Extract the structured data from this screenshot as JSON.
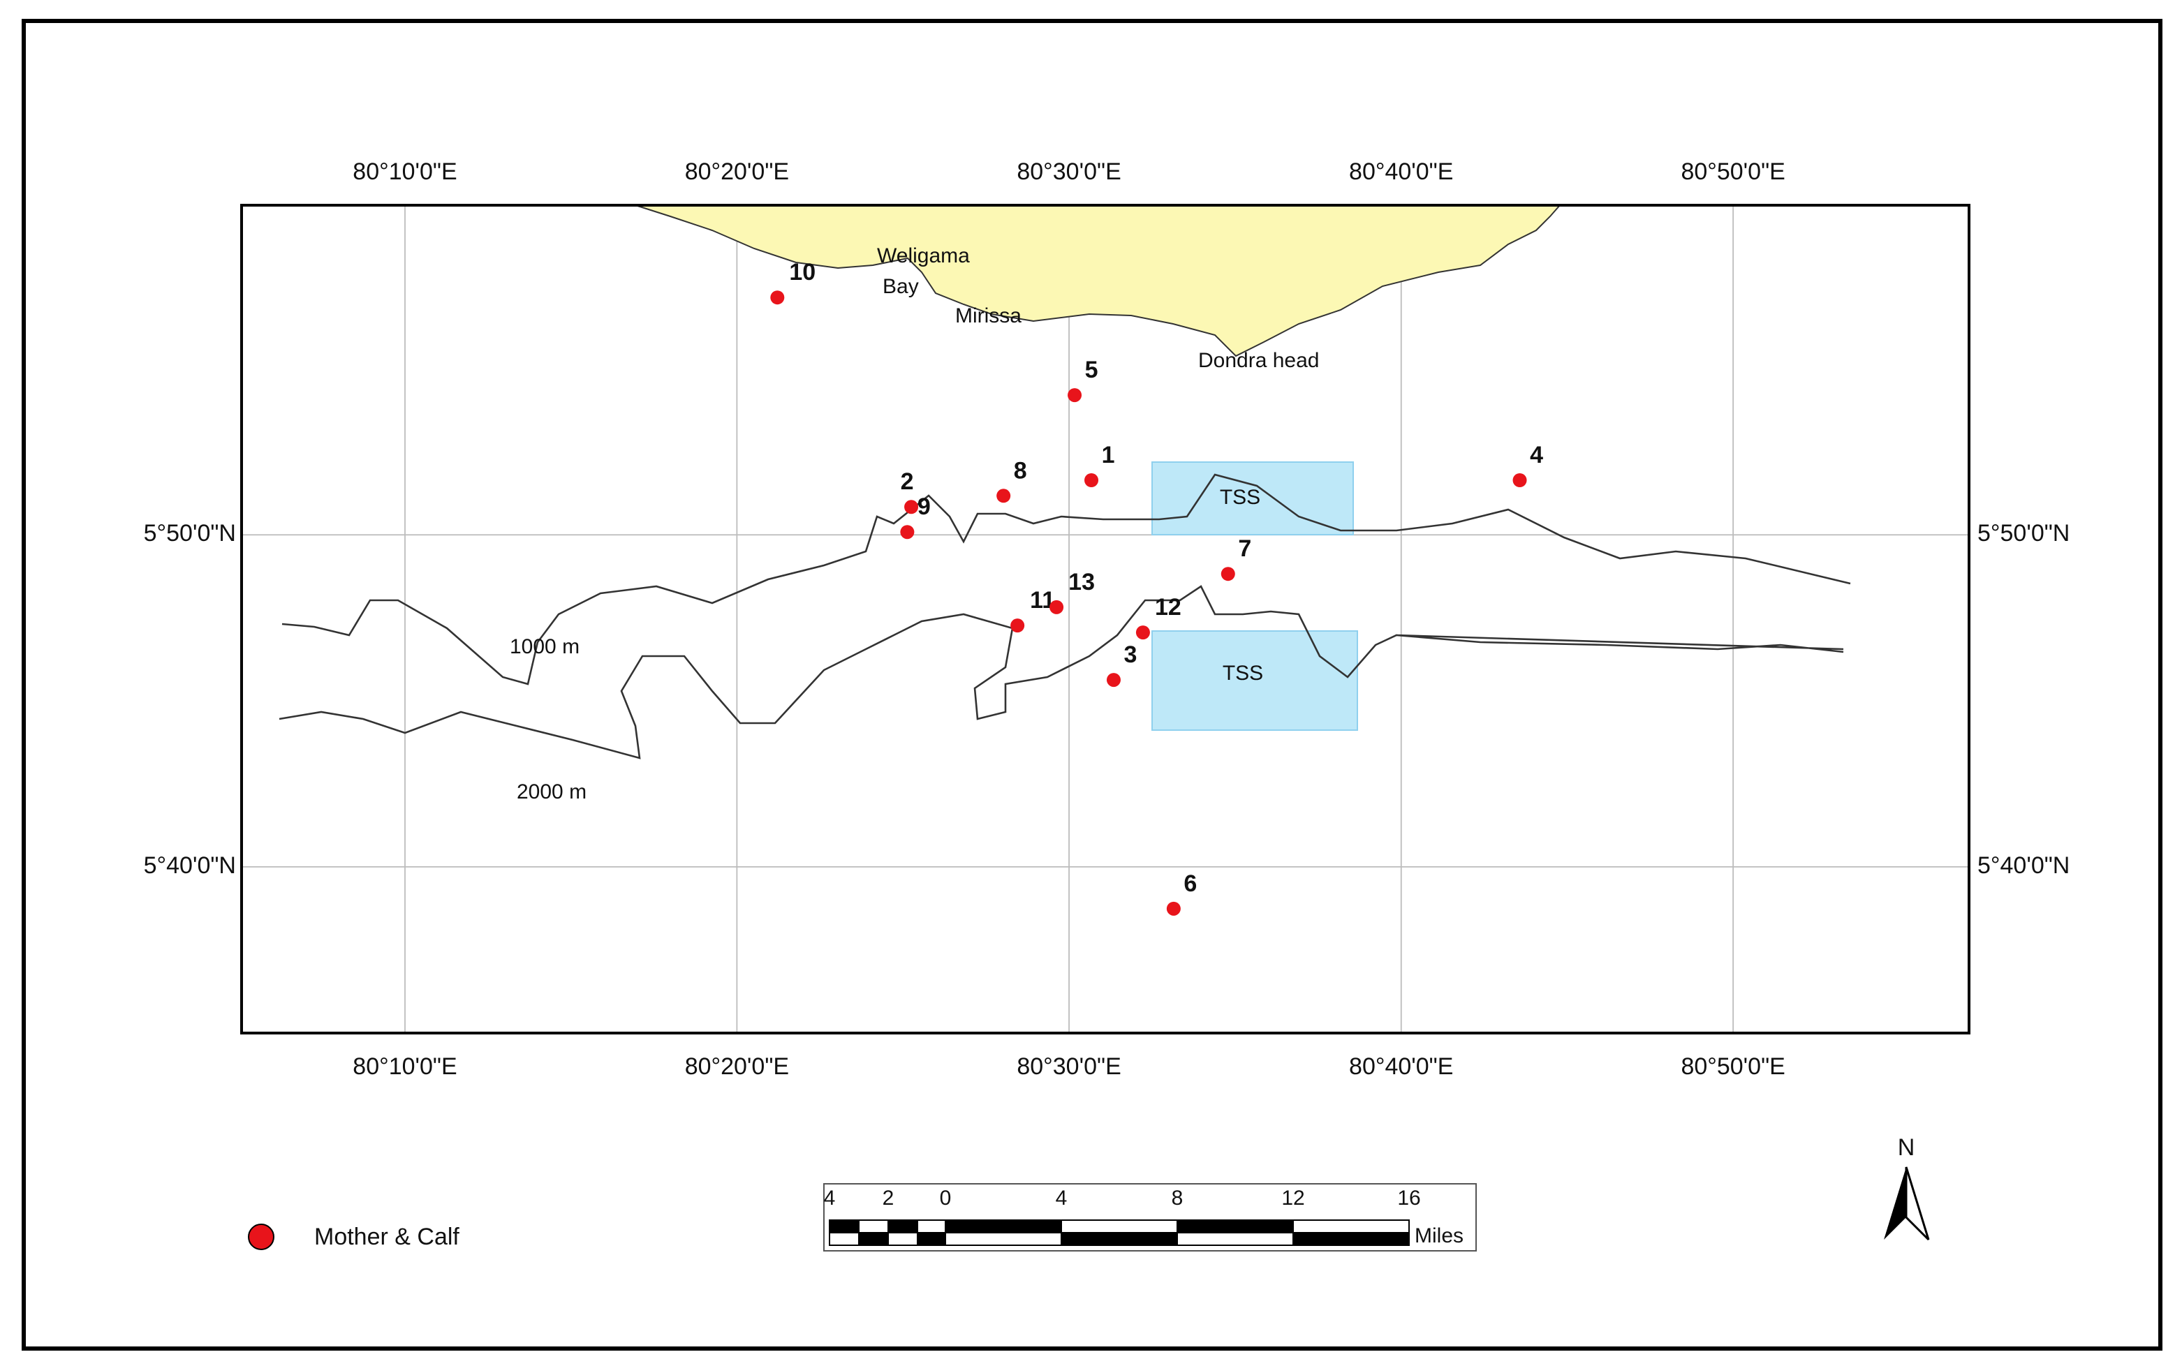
{
  "map": {
    "xlim": [
      80.0847,
      80.9517
    ],
    "ylim": [
      5.5833,
      5.9987
    ],
    "xticks": [
      {
        "value": 80.1667,
        "label": "80°10'0\"E"
      },
      {
        "value": 80.3333,
        "label": "80°20'0\"E"
      },
      {
        "value": 80.5,
        "label": "80°30'0\"E"
      },
      {
        "value": 80.6667,
        "label": "80°40'0\"E"
      },
      {
        "value": 80.8333,
        "label": "80°50'0\"E"
      }
    ],
    "yticks": [
      {
        "value": 5.6667,
        "label": "5°40'0\"N"
      },
      {
        "value": 5.8333,
        "label": "5°50'0\"N"
      }
    ],
    "grid": true,
    "places": [
      "Weligama",
      "Bay",
      "Mirissa",
      "Dondra head"
    ],
    "contours": [
      "1000 m",
      "2000 m"
    ],
    "zones": [
      "TSS",
      "TSS"
    ],
    "points": {
      "labels": [
        "1",
        "2",
        "3",
        "4",
        "5",
        "6",
        "7",
        "8",
        "9",
        "10",
        "11",
        "12",
        "13"
      ],
      "lon": [
        80.5112,
        80.4208,
        80.5224,
        80.7262,
        80.5028,
        80.5525,
        80.5798,
        80.4671,
        80.4188,
        80.3536,
        80.4741,
        80.5371,
        80.4937
      ],
      "lat": [
        5.8607,
        5.8473,
        5.7605,
        5.8607,
        5.9034,
        5.6457,
        5.8137,
        5.8529,
        5.8347,
        5.9524,
        5.7878,
        5.7843,
        5.797
      ],
      "color": "#e8141b"
    },
    "legend": "Mother & Calf",
    "scale_bar": {
      "labels": [
        "4",
        "2",
        "0",
        "4",
        "8",
        "12",
        "16"
      ],
      "unit": "Miles"
    },
    "north": "N"
  }
}
